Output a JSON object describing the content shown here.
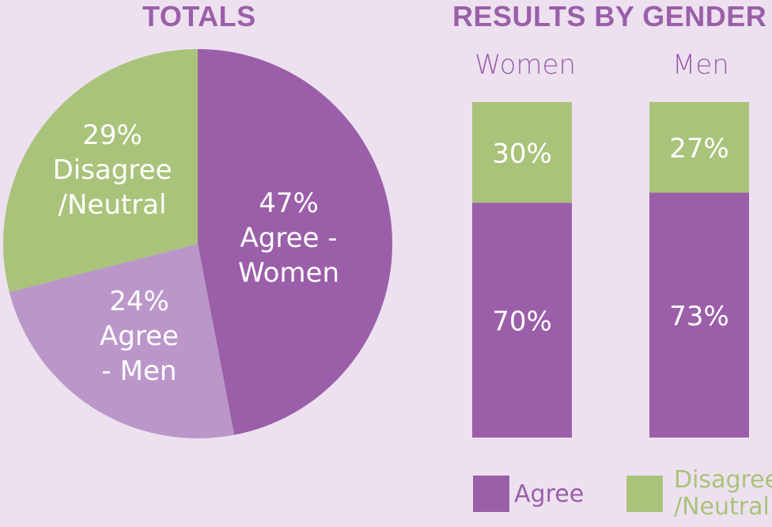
{
  "colors": {
    "background": "#ede1f0",
    "agree_women": "#9b5fa9",
    "agree_men": "#bb97c9",
    "disagree": "#a9c37a",
    "title": "#9b5fa9",
    "label_text": "#ffffff"
  },
  "titles": {
    "totals": "TOTALS",
    "results": "RESULTS BY GENDER"
  },
  "chart_data": [
    {
      "type": "pie",
      "title": "TOTALS",
      "slices": [
        {
          "pct": "47%",
          "value": 47,
          "label_lines": [
            "47%",
            "Agree -",
            "Women"
          ],
          "color": "#9b5fa9"
        },
        {
          "pct": "24%",
          "value": 24,
          "label_lines": [
            "24%",
            "Agree",
            "- Men"
          ],
          "color": "#bb97c9"
        },
        {
          "pct": "29%",
          "value": 29,
          "label_lines": [
            "29%",
            "Disagree",
            "/Neutral"
          ],
          "color": "#a9c37a"
        }
      ]
    },
    {
      "type": "bar",
      "title": "RESULTS BY GENDER",
      "stacked": true,
      "categories": [
        "Women",
        "Men"
      ],
      "series": [
        {
          "name": "Agree",
          "values": [
            70,
            73
          ],
          "labels": [
            "70%",
            "73%"
          ],
          "color": "#9b5fa9"
        },
        {
          "name": "Disagree /Neutral",
          "values": [
            30,
            27
          ],
          "labels": [
            "30%",
            "27%"
          ],
          "color": "#a9c37a"
        }
      ],
      "legend": {
        "position": "bottom",
        "items": [
          {
            "label_lines": [
              "Agree"
            ],
            "color": "#9b5fa9"
          },
          {
            "label_lines": [
              "Disagree",
              "/Neutral"
            ],
            "color": "#a9c37a"
          }
        ]
      }
    }
  ]
}
